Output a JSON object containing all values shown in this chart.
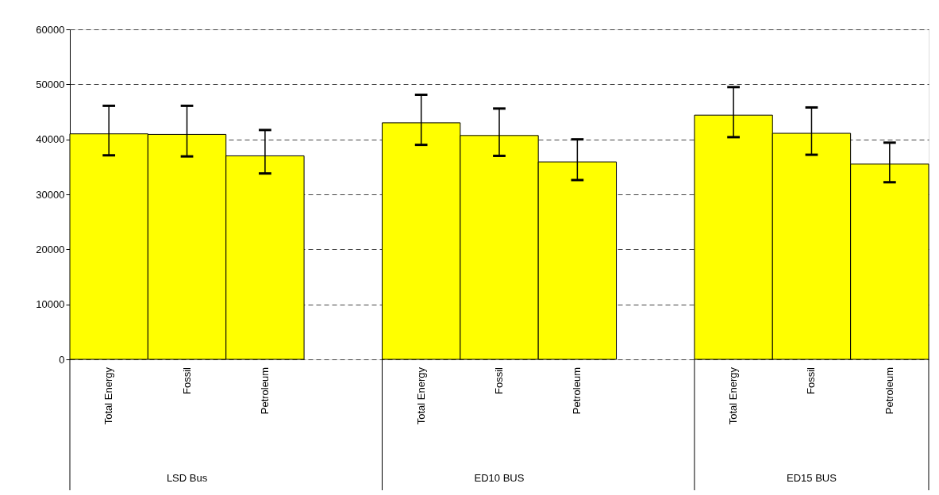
{
  "chart_data": {
    "type": "bar",
    "categories": [
      "Total Energy",
      "Fossil",
      "Petroleum",
      "Total Energy",
      "Fossil",
      "Petroleum",
      "Total Energy",
      "Fossil",
      "Petroleum"
    ],
    "values": [
      41000,
      40900,
      37000,
      43000,
      40700,
      35900,
      44400,
      41100,
      35500
    ],
    "errors": [
      [
        37100,
        46100
      ],
      [
        36900,
        46100
      ],
      [
        33800,
        41700
      ],
      [
        39000,
        48100
      ],
      [
        37000,
        45600
      ],
      [
        32600,
        40000
      ],
      [
        40400,
        49500
      ],
      [
        37200,
        45800
      ],
      [
        32200,
        39400
      ]
    ],
    "color": "#ffff00",
    "annotations": [
      "LSD Bus",
      "ED10 BUS",
      "ED15 BUS"
    ],
    "ylim": [
      0,
      60000
    ],
    "yticks": [
      0,
      10000,
      20000,
      30000,
      40000,
      50000,
      60000
    ],
    "grid": "y"
  }
}
